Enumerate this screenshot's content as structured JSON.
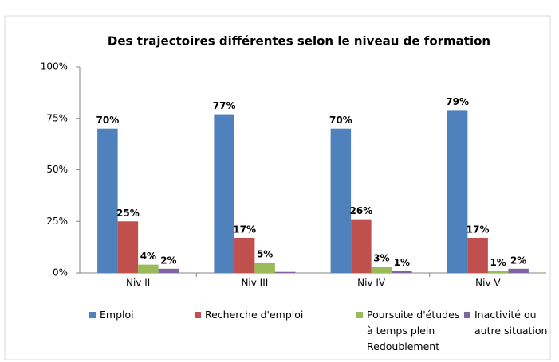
{
  "chart_data": {
    "type": "bar",
    "title": "Des trajectoires différentes selon le niveau de formation",
    "categories": [
      "Niv II",
      "Niv III",
      "Niv IV",
      "Niv V"
    ],
    "series": [
      {
        "name": "Emploi",
        "color": "#4f81bd",
        "values": [
          70,
          77,
          70,
          79
        ],
        "value_labels": [
          "70%",
          "77%",
          "70%",
          "79%"
        ]
      },
      {
        "name": "Recherche d'emploi",
        "color": "#c0504d",
        "values": [
          25,
          17,
          26,
          17
        ],
        "value_labels": [
          "25%",
          "17%",
          "26%",
          "17%"
        ]
      },
      {
        "name": "Poursuite d'études à temps plein Redoublement",
        "color": "#9bbb59",
        "values": [
          4,
          5,
          3,
          1
        ],
        "value_labels": [
          "4%",
          "5%",
          "3%",
          "1%"
        ]
      },
      {
        "name": "Inactivité ou autre situation",
        "color": "#8064a2",
        "values": [
          2,
          0.5,
          1,
          2
        ],
        "value_labels": [
          "2%",
          null,
          "1%",
          "2%"
        ]
      }
    ],
    "ylim": [
      0,
      100
    ],
    "yticks": [
      {
        "value": 0,
        "label": "0%"
      },
      {
        "value": 25,
        "label": "25%"
      },
      {
        "value": 50,
        "label": "50%"
      },
      {
        "value": 75,
        "label": "75%"
      },
      {
        "value": 100,
        "label": "100%"
      }
    ],
    "grid": false,
    "legend": "bottom"
  }
}
